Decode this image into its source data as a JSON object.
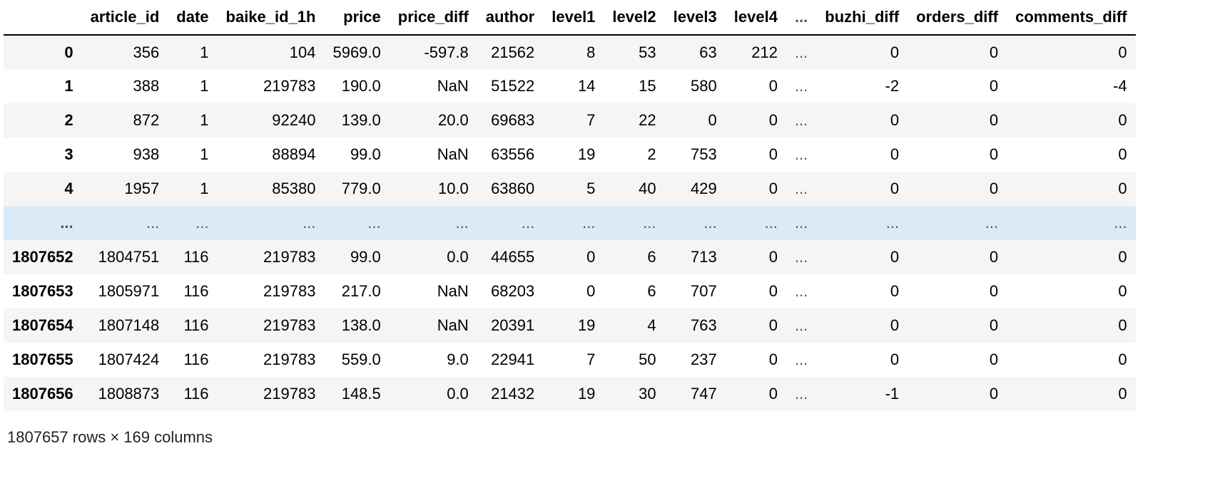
{
  "dataframe": {
    "columns": [
      "",
      "article_id",
      "date",
      "baike_id_1h",
      "price",
      "price_diff",
      "author",
      "level1",
      "level2",
      "level3",
      "level4",
      "...",
      "buzhi_diff",
      "orders_diff",
      "comments_diff"
    ],
    "rows": [
      {
        "index": "0",
        "cells": [
          "356",
          "1",
          "104",
          "5969.0",
          "-597.8",
          "21562",
          "8",
          "53",
          "63",
          "212",
          "...",
          "0",
          "0",
          "0"
        ]
      },
      {
        "index": "1",
        "cells": [
          "388",
          "1",
          "219783",
          "190.0",
          "NaN",
          "51522",
          "14",
          "15",
          "580",
          "0",
          "...",
          "-2",
          "0",
          "-4"
        ]
      },
      {
        "index": "2",
        "cells": [
          "872",
          "1",
          "92240",
          "139.0",
          "20.0",
          "69683",
          "7",
          "22",
          "0",
          "0",
          "...",
          "0",
          "0",
          "0"
        ]
      },
      {
        "index": "3",
        "cells": [
          "938",
          "1",
          "88894",
          "99.0",
          "NaN",
          "63556",
          "19",
          "2",
          "753",
          "0",
          "...",
          "0",
          "0",
          "0"
        ]
      },
      {
        "index": "4",
        "cells": [
          "1957",
          "1",
          "85380",
          "779.0",
          "10.0",
          "63860",
          "5",
          "40",
          "429",
          "0",
          "...",
          "0",
          "0",
          "0"
        ]
      },
      {
        "index": "...",
        "cells": [
          "...",
          "...",
          "...",
          "...",
          "...",
          "...",
          "...",
          "...",
          "...",
          "...",
          "...",
          "...",
          "...",
          "..."
        ]
      },
      {
        "index": "1807652",
        "cells": [
          "1804751",
          "116",
          "219783",
          "99.0",
          "0.0",
          "44655",
          "0",
          "6",
          "713",
          "0",
          "...",
          "0",
          "0",
          "0"
        ]
      },
      {
        "index": "1807653",
        "cells": [
          "1805971",
          "116",
          "219783",
          "217.0",
          "NaN",
          "68203",
          "0",
          "6",
          "707",
          "0",
          "...",
          "0",
          "0",
          "0"
        ]
      },
      {
        "index": "1807654",
        "cells": [
          "1807148",
          "116",
          "219783",
          "138.0",
          "NaN",
          "20391",
          "19",
          "4",
          "763",
          "0",
          "...",
          "0",
          "0",
          "0"
        ]
      },
      {
        "index": "1807655",
        "cells": [
          "1807424",
          "116",
          "219783",
          "559.0",
          "9.0",
          "22941",
          "7",
          "50",
          "237",
          "0",
          "...",
          "0",
          "0",
          "0"
        ]
      },
      {
        "index": "1807656",
        "cells": [
          "1808873",
          "116",
          "219783",
          "148.5",
          "0.0",
          "21432",
          "19",
          "30",
          "747",
          "0",
          "...",
          "-1",
          "0",
          "0"
        ]
      }
    ],
    "shape_text": "1807657 rows × 169 columns",
    "colors": {
      "odd_row": "#f5f5f5",
      "even_row": "#ffffff",
      "ellipsis_row": "#daeaf7"
    }
  }
}
